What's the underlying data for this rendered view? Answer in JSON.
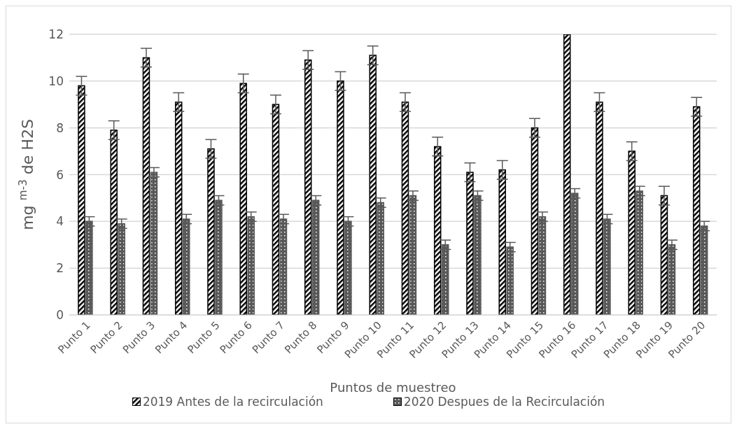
{
  "chart_data": {
    "type": "bar",
    "xlabel": "Puntos de muestreo",
    "ylabel": "mg $^{m-3}$ de H2S",
    "categories": [
      "Punto 1",
      "Punto 2",
      "Punto 3",
      "Punto 4",
      "Punto 5",
      "Punto 6",
      "Punto 7",
      "Punto 8",
      "Punto 9",
      "Punto 10",
      "Punto 11",
      "Punto 12",
      "Punto 13",
      "Punto 14",
      "Punto 15",
      "Punto 16",
      "Punto 17",
      "Punto 18",
      "Punto 19",
      "Punto 20"
    ],
    "series": [
      {
        "name": "2019 Antes de la recirculación",
        "color": "#000000",
        "values": [
          9.8,
          7.9,
          11.0,
          9.1,
          7.1,
          9.9,
          9.0,
          10.9,
          10.0,
          11.1,
          9.1,
          7.2,
          6.1,
          6.2,
          8.0,
          12.0,
          9.1,
          7.0,
          5.1,
          8.9
        ],
        "errors": [
          0.4,
          0.4,
          0.4,
          0.4,
          0.4,
          0.4,
          0.4,
          0.4,
          0.4,
          0.4,
          0.4,
          0.4,
          0.4,
          0.4,
          0.4,
          null,
          0.4,
          0.4,
          0.4,
          0.4
        ]
      },
      {
        "name": "2020 Despues de la Recirculación",
        "color": "#595959",
        "values": [
          4.0,
          3.9,
          6.1,
          4.1,
          4.9,
          4.2,
          4.1,
          4.9,
          4.0,
          4.8,
          5.1,
          3.0,
          5.1,
          2.9,
          4.2,
          5.2,
          4.1,
          5.3,
          3.0,
          3.8
        ],
        "errors": [
          0.2,
          0.2,
          0.2,
          0.2,
          0.2,
          0.2,
          0.2,
          0.2,
          0.2,
          0.2,
          0.2,
          0.2,
          0.2,
          0.2,
          0.2,
          0.2,
          0.2,
          0.2,
          0.2,
          0.2
        ]
      }
    ],
    "ylim": [
      0,
      12
    ],
    "yticks": [
      0,
      2,
      4,
      6,
      8,
      10,
      12
    ],
    "grid": "y",
    "legend": "bottom"
  }
}
